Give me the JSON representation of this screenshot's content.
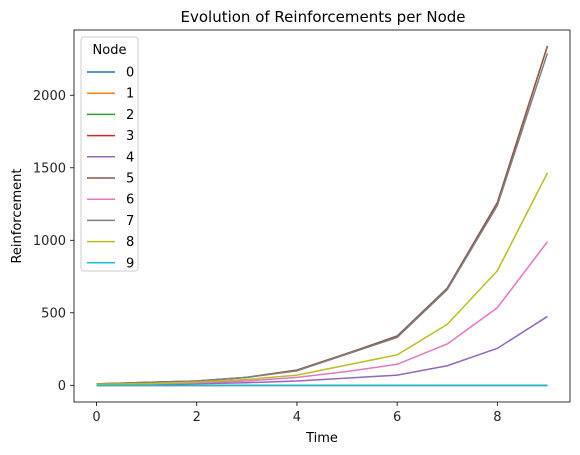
{
  "chart_data": {
    "type": "line",
    "title": "Evolution of Reinforcements per Node",
    "xlabel": "Time",
    "ylabel": "Reinforcement",
    "xlim": [
      -0.45,
      9.45
    ],
    "ylim": [
      -115,
      2450
    ],
    "xticks": [
      0,
      2,
      4,
      6,
      8
    ],
    "yticks": [
      0,
      500,
      1000,
      1500,
      2000
    ],
    "grid": false,
    "legend": {
      "title": "Node",
      "placement": "top-left"
    },
    "x": [
      0,
      1,
      2,
      3,
      4,
      5,
      6,
      7,
      8,
      9
    ],
    "series": [
      {
        "name": "0",
        "color": "#1f77b4",
        "values": [
          0,
          0,
          0,
          0,
          0,
          0,
          0,
          0,
          0,
          0
        ]
      },
      {
        "name": "1",
        "color": "#ff7f0e",
        "values": [
          10,
          20,
          30,
          55,
          105,
          220,
          335,
          665,
          1260,
          2340
        ]
      },
      {
        "name": "2",
        "color": "#2ca02c",
        "values": [
          0,
          0,
          0,
          0,
          0,
          0,
          0,
          0,
          0,
          0
        ]
      },
      {
        "name": "3",
        "color": "#d62728",
        "values": [
          0,
          0,
          0,
          0,
          0,
          0,
          0,
          0,
          0,
          0
        ]
      },
      {
        "name": "4",
        "color": "#9467bd",
        "values": [
          5,
          8,
          12,
          18,
          30,
          50,
          70,
          135,
          255,
          475
        ]
      },
      {
        "name": "5",
        "color": "#8c564b",
        "values": [
          10,
          20,
          30,
          55,
          105,
          220,
          340,
          670,
          1260,
          2340
        ]
      },
      {
        "name": "6",
        "color": "#e377c2",
        "values": [
          5,
          10,
          18,
          30,
          55,
          95,
          145,
          285,
          535,
          990
        ]
      },
      {
        "name": "7",
        "color": "#7f7f7f",
        "values": [
          10,
          20,
          30,
          55,
          100,
          215,
          330,
          660,
          1240,
          2290
        ]
      },
      {
        "name": "8",
        "color": "#bcbd22",
        "values": [
          7,
          12,
          22,
          40,
          70,
          140,
          210,
          420,
          790,
          1465
        ]
      },
      {
        "name": "9",
        "color": "#17becf",
        "values": [
          0,
          0,
          0,
          0,
          0,
          0,
          0,
          0,
          0,
          0
        ]
      }
    ]
  }
}
